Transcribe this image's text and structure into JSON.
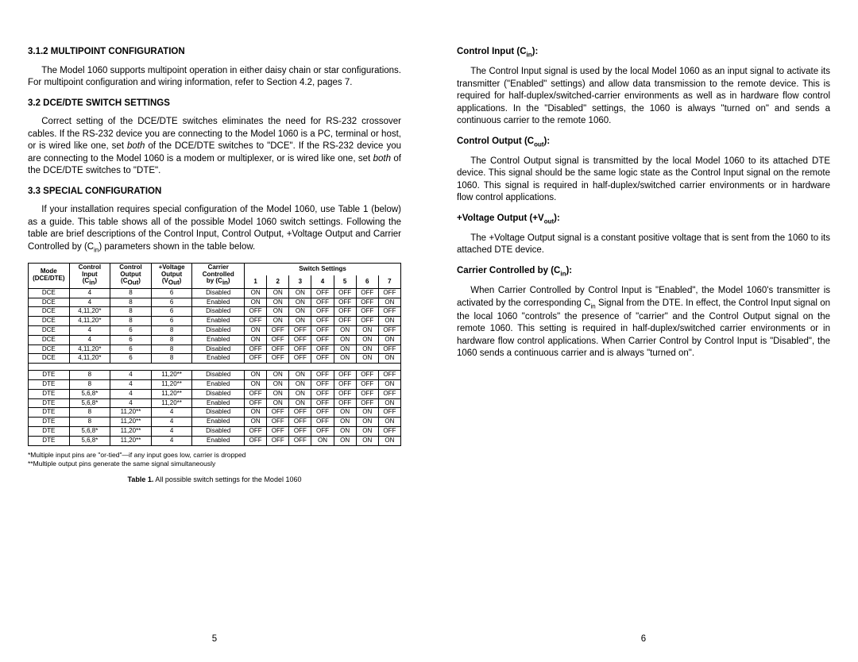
{
  "left": {
    "s1_heading": "3.1.2  MULTIPOINT CONFIGURATION",
    "s1_para": "The Model 1060 supports multipoint operation in either daisy chain or star configurations.  For multipoint configuration and wiring information, refer to Section 4.2, pages 7.",
    "s2_heading": "3.2  DCE/DTE SWITCH SETTINGS",
    "s2_para": "Correct setting of the DCE/DTE switches eliminates the need for RS-232 crossover cables.  If the RS-232 device you are connecting to the Model 1060 is a PC, terminal or host, or is wired like one, set both of the DCE/DTE switches to \"DCE\".  If the RS-232 device you are connecting to the Model 1060 is a modem or multiplexer, or is wired like one, set both of the DCE/DTE switches to \"DTE\".",
    "s3_heading": "3.3  SPECIAL CONFIGURATION",
    "s3_para": "If your installation requires special configuration of the Model 1060, use Table 1 (below) as a guide.  This table shows all of the possible Model 1060 switch settings.  Following the table are brief descriptions of the Control Input, Control Output, +Voltage Output and Carrier Controlled by (Cin) parameters shown in the table below.",
    "table": {
      "headers": {
        "mode1": "Mode",
        "mode2": "(DCE/DTE)",
        "ci1": "Control",
        "ci2": "Input",
        "ci3": "(Cin)",
        "co1": "Control",
        "co2": "Output",
        "co3": "(COut)",
        "vo1": "+Voltage",
        "vo2": "Output",
        "vo3": "(VOut)",
        "cc1": "Carrier",
        "cc2": "Controlled",
        "cc3": "by (Cin)",
        "ss": "Switch Settings",
        "s1": "1",
        "s2": "2",
        "s3": "3",
        "s4": "4",
        "s5": "5",
        "s6": "6",
        "s7": "7"
      },
      "rows_dce": [
        {
          "m": "DCE",
          "ci": "4",
          "co": "8",
          "vo": "6",
          "cc": "Disabled",
          "s": [
            "ON",
            "ON",
            "ON",
            "OFF",
            "OFF",
            "OFF",
            "OFF"
          ]
        },
        {
          "m": "DCE",
          "ci": "4",
          "co": "8",
          "vo": "6",
          "cc": "Enabled",
          "s": [
            "ON",
            "ON",
            "ON",
            "OFF",
            "OFF",
            "OFF",
            "ON"
          ]
        },
        {
          "m": "DCE",
          "ci": "4,11,20*",
          "co": "8",
          "vo": "6",
          "cc": "Disabled",
          "s": [
            "OFF",
            "ON",
            "ON",
            "OFF",
            "OFF",
            "OFF",
            "OFF"
          ]
        },
        {
          "m": "DCE",
          "ci": "4,11,20*",
          "co": "8",
          "vo": "6",
          "cc": "Enabled",
          "s": [
            "OFF",
            "ON",
            "ON",
            "OFF",
            "OFF",
            "OFF",
            "ON"
          ]
        },
        {
          "m": "DCE",
          "ci": "4",
          "co": "6",
          "vo": "8",
          "cc": "Disabled",
          "s": [
            "ON",
            "OFF",
            "OFF",
            "OFF",
            "ON",
            "ON",
            "OFF"
          ]
        },
        {
          "m": "DCE",
          "ci": "4",
          "co": "6",
          "vo": "8",
          "cc": "Enabled",
          "s": [
            "ON",
            "OFF",
            "OFF",
            "OFF",
            "ON",
            "ON",
            "ON"
          ]
        },
        {
          "m": "DCE",
          "ci": "4,11,20*",
          "co": "6",
          "vo": "8",
          "cc": "Disabled",
          "s": [
            "OFF",
            "OFF",
            "OFF",
            "OFF",
            "ON",
            "ON",
            "OFF"
          ]
        },
        {
          "m": "DCE",
          "ci": "4,11,20*",
          "co": "6",
          "vo": "8",
          "cc": "Enabled",
          "s": [
            "OFF",
            "OFF",
            "OFF",
            "OFF",
            "ON",
            "ON",
            "ON"
          ]
        }
      ],
      "rows_dte": [
        {
          "m": "DTE",
          "ci": "8",
          "co": "4",
          "vo": "11,20**",
          "cc": "Disabled",
          "s": [
            "ON",
            "ON",
            "ON",
            "OFF",
            "OFF",
            "OFF",
            "OFF"
          ]
        },
        {
          "m": "DTE",
          "ci": "8",
          "co": "4",
          "vo": "11,20**",
          "cc": "Enabled",
          "s": [
            "ON",
            "ON",
            "ON",
            "OFF",
            "OFF",
            "OFF",
            "ON"
          ]
        },
        {
          "m": "DTE",
          "ci": "5,6,8*",
          "co": "4",
          "vo": "11,20**",
          "cc": "Disabled",
          "s": [
            "OFF",
            "ON",
            "ON",
            "OFF",
            "OFF",
            "OFF",
            "OFF"
          ]
        },
        {
          "m": "DTE",
          "ci": "5,6,8*",
          "co": "4",
          "vo": "11,20**",
          "cc": "Enabled",
          "s": [
            "OFF",
            "ON",
            "ON",
            "OFF",
            "OFF",
            "OFF",
            "ON"
          ]
        },
        {
          "m": "DTE",
          "ci": "8",
          "co": "11,20**",
          "vo": "4",
          "cc": "Disabled",
          "s": [
            "ON",
            "OFF",
            "OFF",
            "OFF",
            "ON",
            "ON",
            "OFF"
          ]
        },
        {
          "m": "DTE",
          "ci": "8",
          "co": "11,20**",
          "vo": "4",
          "cc": "Enabled",
          "s": [
            "ON",
            "OFF",
            "OFF",
            "OFF",
            "ON",
            "ON",
            "ON"
          ]
        },
        {
          "m": "DTE",
          "ci": "5,6,8*",
          "co": "11,20**",
          "vo": "4",
          "cc": "Disabled",
          "s": [
            "OFF",
            "OFF",
            "OFF",
            "OFF",
            "ON",
            "ON",
            "OFF"
          ]
        },
        {
          "m": "DTE",
          "ci": "5,6,8*",
          "co": "11,20**",
          "vo": "4",
          "cc": "Enabled",
          "s": [
            "OFF",
            "OFF",
            "OFF",
            "ON",
            "ON",
            "ON",
            "ON"
          ]
        }
      ]
    },
    "footnote1": "*Multiple input pins are \"or-tied\"—if any input goes low, carrier is dropped",
    "footnote2": "**Multiple output pins generate the same signal simultaneously",
    "caption_bold": "Table 1.",
    "caption_rest": "  All possible switch settings for the Model 1060",
    "page_num": "5"
  },
  "right": {
    "h1": "Control Input (Cin):",
    "p1": "The Control Input signal is used by the local Model 1060 as an input signal to activate its transmitter (\"Enabled\" settings) and allow data transmission to the remote device.  This is required for half-duplex/switched-carrier environments as well as in hardware flow control applications.  In the \"Disabled\" settings, the 1060 is always \"turned on\" and sends a continuous carrier to the remote 1060.",
    "h2": "Control Output (Cout):",
    "p2": "The Control Output signal is transmitted by the local Model 1060 to its attached DTE device.  This signal should be the same logic state as the Control Input signal on the remote 1060.  This signal is required in half-duplex/switched carrier environments or in hardware flow control applications.",
    "h3": "+Voltage Output (+Vout):",
    "p3": "The +Voltage Output signal is a constant positive voltage that is sent from the 1060 to its attached DTE device.",
    "h4": "Carrier Controlled by (Cin):",
    "p4": "When Carrier Controlled by Control Input is \"Enabled\", the Model 1060's transmitter is activated by the corresponding Cin Signal from the DTE.  In effect, the Control Input signal on the local 1060 \"controls\" the presence of \"carrier\" and the Control Output signal on the remote 1060.  This setting is required in half-duplex/switched carrier environments or in hardware flow control applications.  When Carrier Control by Control Input is \"Disabled\", the 1060 sends a continuous carrier and is always \"turned on\".",
    "page_num": "6"
  }
}
